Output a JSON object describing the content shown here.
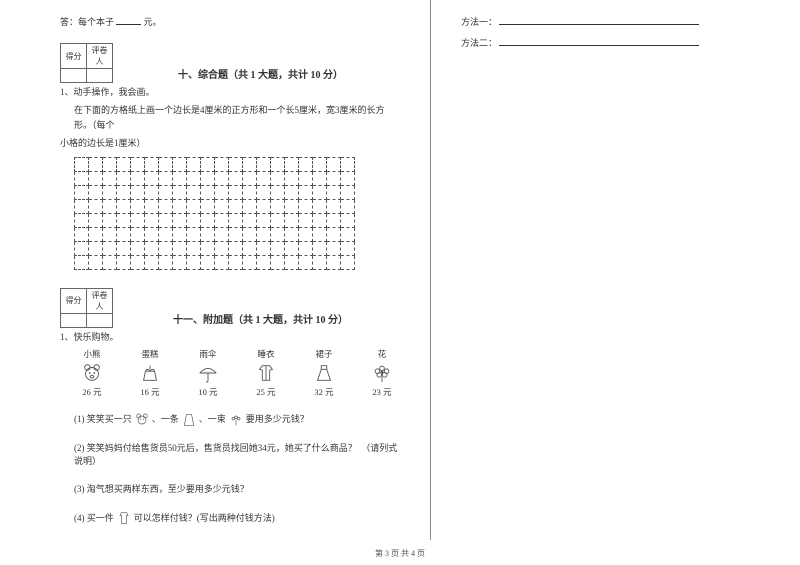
{
  "colors": {
    "text": "#333333",
    "border": "#666666",
    "bg": "#ffffff"
  },
  "left": {
    "answer_prefix": "答：每个本子",
    "answer_suffix": "元。",
    "score_labels": {
      "score": "得分",
      "reviewer": "评卷人"
    },
    "section10": {
      "title": "十、综合题（共 1 大题，共计 10 分）",
      "q_num": "1、动手操作，我会画。",
      "q_text1": "在下面的方格纸上画一个边长是4厘米的正方形和一个长5厘米，宽3厘米的长方形。（每个",
      "q_text2": "小格的边长是1厘米）",
      "grid": {
        "rows": 8,
        "cols": 20
      }
    },
    "section11": {
      "title": "十一、附加题（共 1 大题，共计 10 分）",
      "q_num": "1、快乐购物。",
      "items": [
        {
          "label": "小熊",
          "price": "26 元",
          "icon": "bear"
        },
        {
          "label": "蛋糕",
          "price": "16 元",
          "icon": "cake"
        },
        {
          "label": "雨伞",
          "price": "10 元",
          "icon": "umbrella"
        },
        {
          "label": "睡衣",
          "price": "25 元",
          "icon": "pajama"
        },
        {
          "label": "裙子",
          "price": "32 元",
          "icon": "skirt"
        },
        {
          "label": "花",
          "price": "23 元",
          "icon": "flower"
        }
      ],
      "sub1_a": "(1) 笑笑买一只",
      "sub1_b": "、一条",
      "sub1_c": "、一束",
      "sub1_d": "要用多少元钱？",
      "sub2": "(2) 笑笑妈妈付给售货员50元后，售货员找回她34元，她买了什么商品？　（请列式说明）",
      "sub3": "(3) 淘气想买两样东西，至少要用多少元钱？",
      "sub4_a": "(4) 买一件",
      "sub4_b": "可以怎样付钱？(写出两种付钱方法)"
    }
  },
  "right": {
    "method1_label": "方法一：",
    "method2_label": "方法二："
  },
  "footer": "第 3 页 共 4 页"
}
